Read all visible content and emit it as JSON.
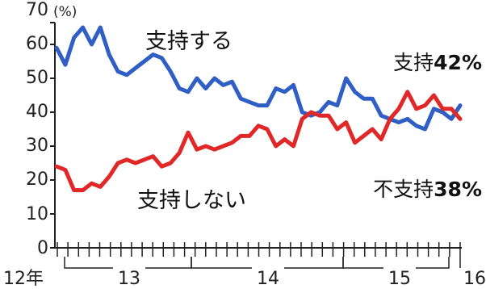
{
  "chart_data": {
    "type": "line",
    "y_unit": "(%)",
    "ylim": [
      0,
      70
    ],
    "y_ticks": [
      "0",
      "10",
      "20",
      "30",
      "40",
      "50",
      "60",
      "70"
    ],
    "x_labels": {
      "start": "12年",
      "y13": "13",
      "y14": "14",
      "y15": "15",
      "end": "16"
    },
    "grid": false,
    "series": [
      {
        "name": "支持する",
        "color": "#2f5fc4",
        "end_prefix": "支持",
        "end_value": "42%",
        "values": [
          59,
          54,
          62,
          65,
          60,
          65,
          57,
          52,
          51,
          53,
          55,
          57,
          56,
          52,
          47,
          46,
          50,
          47,
          50,
          48,
          49,
          44,
          43,
          42,
          42,
          47,
          46,
          48,
          40,
          39,
          40,
          43,
          42,
          50,
          46,
          44,
          44,
          39,
          38,
          37,
          38,
          36,
          35,
          41,
          40,
          38,
          42
        ]
      },
      {
        "name": "支持しない",
        "color": "#e02828",
        "end_prefix": "不支持",
        "end_value": "38%",
        "values": [
          24,
          23,
          17,
          17,
          19,
          18,
          21,
          25,
          26,
          25,
          26,
          27,
          24,
          25,
          28,
          34,
          29,
          30,
          29,
          30,
          31,
          33,
          33,
          36,
          35,
          30,
          32,
          30,
          38,
          40,
          39,
          39,
          35,
          37,
          31,
          33,
          35,
          32,
          38,
          41,
          46,
          41,
          42,
          45,
          41,
          41,
          38
        ]
      }
    ]
  }
}
